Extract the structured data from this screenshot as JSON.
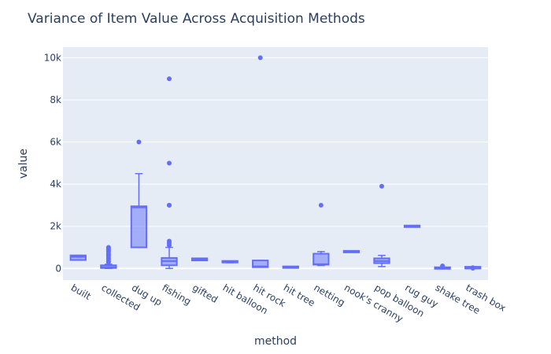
{
  "chart_data": {
    "type": "box",
    "title": "Variance of Item Value Across Acquisition Methods",
    "xlabel": "method",
    "ylabel": "value",
    "ylim": [
      -550,
      10500
    ],
    "yticks": [
      {
        "value": 0,
        "label": "0"
      },
      {
        "value": 2000,
        "label": "2k"
      },
      {
        "value": 4000,
        "label": "4k"
      },
      {
        "value": 6000,
        "label": "6k"
      },
      {
        "value": 8000,
        "label": "8k"
      },
      {
        "value": 10000,
        "label": "10k"
      }
    ],
    "grid": true,
    "legend": "none",
    "colors": {
      "box_fill": "rgba(99,110,250,0.5)",
      "box_line": "#636efa",
      "plot_bg": "#e5ecf6",
      "grid": "#ffffff",
      "text": "#2a3f5f"
    },
    "categories": [
      "built",
      "collected",
      "dug up",
      "fishing",
      "gifted",
      "hit balloon",
      "hit rock",
      "hit tree",
      "netting",
      "nook's cranny",
      "pop balloon",
      "rug guy",
      "shake tree",
      "trash box"
    ],
    "boxes": [
      {
        "category": "built",
        "min": 400,
        "q1": 400,
        "median": 550,
        "q3": 620,
        "max": 620,
        "outliers": []
      },
      {
        "category": "collected",
        "min": 0,
        "q1": 20,
        "median": 60,
        "q3": 150,
        "max": 200,
        "outliers": [
          300,
          350,
          450,
          500,
          600,
          650,
          700,
          800,
          850,
          900,
          950,
          1000
        ]
      },
      {
        "category": "dug up",
        "min": 1000,
        "q1": 1000,
        "median": 2900,
        "q3": 2950,
        "max": 4500,
        "outliers": [
          6000
        ]
      },
      {
        "category": "fishing",
        "min": 0,
        "q1": 150,
        "median": 350,
        "q3": 500,
        "max": 1000,
        "outliers": [
          1100,
          1200,
          1300,
          3000,
          3000,
          5000,
          9000
        ]
      },
      {
        "category": "gifted",
        "min": 380,
        "q1": 380,
        "median": 430,
        "q3": 480,
        "max": 480,
        "outliers": []
      },
      {
        "category": "hit balloon",
        "min": 270,
        "q1": 270,
        "median": 300,
        "q3": 320,
        "max": 320,
        "outliers": []
      },
      {
        "category": "hit rock",
        "min": 60,
        "q1": 60,
        "median": 100,
        "q3": 380,
        "max": 380,
        "outliers": [
          10000
        ]
      },
      {
        "category": "hit tree",
        "min": 20,
        "q1": 20,
        "median": 40,
        "q3": 60,
        "max": 60,
        "outliers": []
      },
      {
        "category": "netting",
        "min": 140,
        "q1": 180,
        "median": 200,
        "q3": 700,
        "max": 800,
        "outliers": [
          3000
        ]
      },
      {
        "category": "nook's cranny",
        "min": 800,
        "q1": 800,
        "median": 800,
        "q3": 800,
        "max": 800,
        "outliers": []
      },
      {
        "category": "pop balloon",
        "min": 90,
        "q1": 250,
        "median": 350,
        "q3": 480,
        "max": 620,
        "outliers": [
          3900
        ]
      },
      {
        "category": "rug guy",
        "min": 2000,
        "q1": 2000,
        "median": 2000,
        "q3": 2000,
        "max": 2000,
        "outliers": []
      },
      {
        "category": "shake tree",
        "min": -20,
        "q1": -20,
        "median": 0,
        "q3": 20,
        "max": 20,
        "outliers": [
          60,
          90,
          120
        ]
      },
      {
        "category": "trash box",
        "min": 0,
        "q1": 0,
        "median": 0,
        "q3": 80,
        "max": 80,
        "outliers": [
          10,
          40
        ]
      }
    ]
  }
}
